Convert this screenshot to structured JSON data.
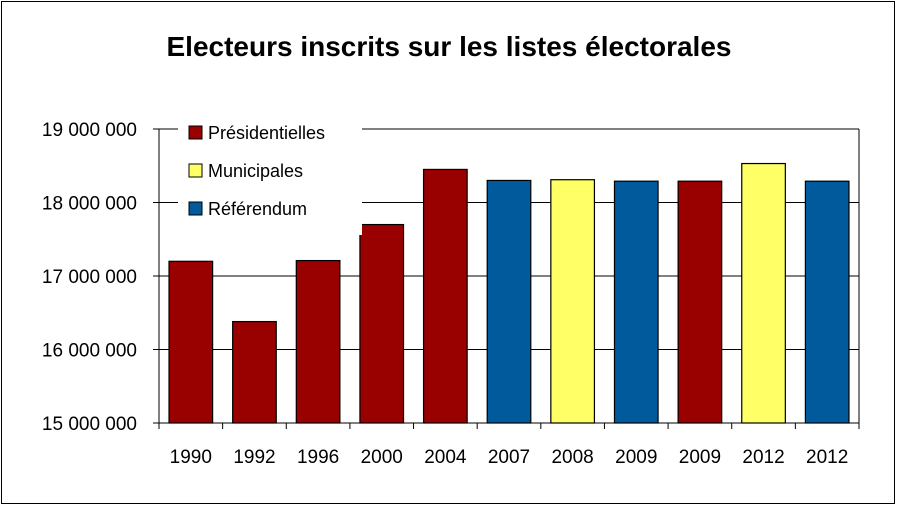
{
  "chart_data": {
    "type": "bar",
    "title": "Electeurs inscrits sur les listes électorales",
    "xlabel": "",
    "ylabel": "",
    "ylim": [
      15000000,
      19000000
    ],
    "yticks": [
      15000000,
      16000000,
      17000000,
      18000000,
      19000000
    ],
    "ytick_labels": [
      "15 000 000",
      "16 000 000",
      "17 000 000",
      "18 000 000",
      "19 000 000"
    ],
    "grid": true,
    "legend_position": "top-left",
    "legend": [
      {
        "name": "Présidentielles",
        "color": "#990000"
      },
      {
        "name": "Municipales",
        "color": "#ffff66"
      },
      {
        "name": "Référendum",
        "color": "#005a9c"
      }
    ],
    "categories": [
      "1990",
      "1992",
      "1996",
      "2000",
      "2004",
      "2007",
      "2008",
      "2009",
      "2009",
      "2012",
      "2012"
    ],
    "values": [
      17200000,
      16380000,
      17210000,
      17700000,
      18450000,
      18300000,
      18310000,
      18290000,
      18290000,
      18530000,
      18290000
    ],
    "bar_types": [
      "Présidentielles",
      "Présidentielles",
      "Présidentielles",
      "Présidentielles",
      "Présidentielles",
      "Référendum",
      "Municipales",
      "Référendum",
      "Présidentielles",
      "Municipales",
      "Référendum"
    ]
  }
}
